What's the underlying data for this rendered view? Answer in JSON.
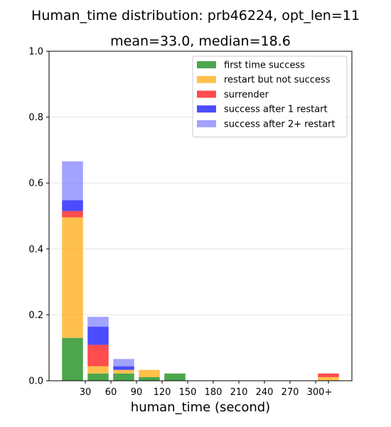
{
  "chart_data": {
    "type": "bar",
    "stacked": true,
    "title": "Human_time distribution: prb46224, opt_len=11",
    "subtitle": "mean=33.0, median=18.6",
    "xlabel": "human_time (second)",
    "ylabel": "",
    "ylim": [
      0,
      1.0
    ],
    "yticks": [
      "0.0",
      "0.2",
      "0.4",
      "0.6",
      "0.8",
      "1.0"
    ],
    "xticks": [
      "30",
      "60",
      "90",
      "120",
      "150",
      "180",
      "210",
      "240",
      "270",
      "300",
      "+"
    ],
    "bins": [
      "0-30",
      "30-60",
      "60-90",
      "90-120",
      "120-150",
      "150-180",
      "180-210",
      "210-240",
      "240-270",
      "270-300",
      "300+"
    ],
    "grid": true,
    "legend_position": "top-right",
    "series": [
      {
        "name": "first time success",
        "color": "#008000",
        "values": [
          0.13,
          0.022,
          0.022,
          0.011,
          0.022,
          0,
          0,
          0,
          0,
          0,
          0
        ]
      },
      {
        "name": "restart but not success",
        "color": "#FFA500",
        "values": [
          0.366,
          0.022,
          0.011,
          0.022,
          0,
          0,
          0,
          0,
          0,
          0,
          0.011
        ]
      },
      {
        "name": "surrender",
        "color": "#FF0000",
        "values": [
          0.019,
          0.065,
          0,
          0,
          0,
          0,
          0,
          0,
          0,
          0,
          0.011
        ]
      },
      {
        "name": "success after 1 restart",
        "color": "#0000FF",
        "values": [
          0.033,
          0.055,
          0.011,
          0,
          0,
          0,
          0,
          0,
          0,
          0,
          0
        ]
      },
      {
        "name": "success after 2+ restart",
        "color": "#7B7BFF",
        "values": [
          0.118,
          0.03,
          0.022,
          0,
          0,
          0,
          0,
          0,
          0,
          0,
          0
        ]
      }
    ]
  }
}
